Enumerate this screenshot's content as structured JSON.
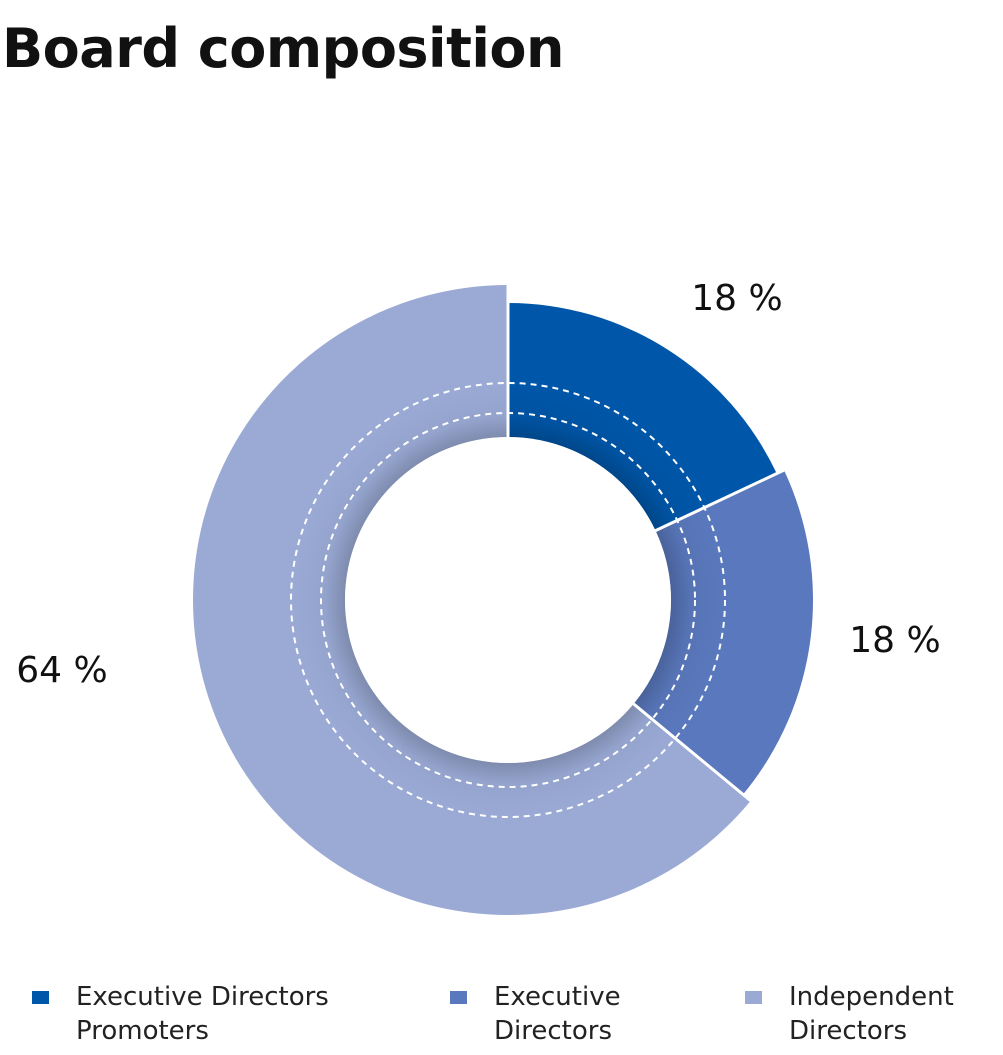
{
  "page": {
    "title": "Board composition"
  },
  "chart_data": {
    "type": "pie",
    "style": "donut",
    "categories": [
      "Executive Directors Promoters",
      "Executive Directors",
      "Independent Directors"
    ],
    "values": [
      18,
      18,
      64
    ],
    "value_labels": [
      "18 %",
      "18 %",
      "64 %"
    ],
    "colors": [
      "#0056A8",
      "#5A78BD",
      "#9AAAD5"
    ],
    "legend": {
      "position": "bottom",
      "lines": [
        [
          "Executive Directors",
          "Promoters"
        ],
        [
          "Executive",
          "Directors"
        ],
        [
          "Independent",
          "Directors"
        ]
      ]
    }
  }
}
